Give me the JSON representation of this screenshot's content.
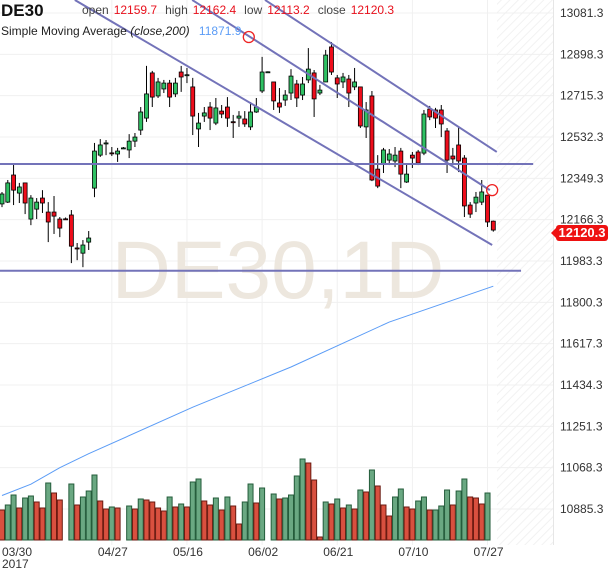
{
  "header": {
    "symbol": "DE30",
    "open_label": "open",
    "open_value": "12159.7",
    "high_label": "high",
    "high_value": "12162.4",
    "low_label": "low",
    "low_value": "12113.2",
    "close_label": "close",
    "close_value": "12120.3",
    "indicator_name": "Simple Moving Average",
    "indicator_params": "(close,200)",
    "indicator_value": "11871.9"
  },
  "last_price_tag": "12120.3",
  "colors": {
    "up": "#2fc163",
    "down": "#ee0d1b",
    "volume_up": "#6aa882",
    "volume_down": "#d9503f",
    "sma": "#5b9cf6",
    "trendline": "#7373b9",
    "marker": "#ee2222",
    "watermark": "#ede7de",
    "last_price": "#ee1111"
  },
  "chart_data": {
    "type": "candlestick",
    "title": "DE30",
    "watermark": "DE30,1D",
    "y_axis_position": "right",
    "ylim": [
      10885.3,
      13081.3
    ],
    "y_ticks": [
      "13081.3",
      "12898.3",
      "12715.3",
      "12532.3",
      "12349.3",
      "12166.3",
      "11983.3",
      "11800.3",
      "11617.3",
      "11434.3",
      "11251.3",
      "11068.3",
      "10885.3"
    ],
    "x_ticks": [
      {
        "label": "03/30",
        "sub": "2017",
        "bar": 0
      },
      {
        "label": "04/27",
        "bar": 19
      },
      {
        "label": "05/16",
        "bar": 32
      },
      {
        "label": "06/02",
        "bar": 45
      },
      {
        "label": "06/21",
        "bar": 58
      },
      {
        "label": "07/10",
        "bar": 71
      },
      {
        "label": "07/27",
        "bar": 84
      }
    ],
    "grid": true,
    "ohlc_columns": [
      "open",
      "high",
      "low",
      "close"
    ],
    "candles": [
      [
        12236,
        12289,
        12222,
        12280
      ],
      [
        12244,
        12342,
        12240,
        12329
      ],
      [
        12364,
        12413,
        12231,
        12297
      ],
      [
        12284,
        12329,
        12240,
        12311
      ],
      [
        12329,
        12329,
        12191,
        12240
      ],
      [
        12169,
        12275,
        12142,
        12262
      ],
      [
        12213,
        12262,
        12169,
        12244
      ],
      [
        12262,
        12297,
        12196,
        12240
      ],
      [
        12200,
        12244,
        12067,
        12156
      ],
      [
        12200,
        12271,
        12103,
        12182
      ],
      [
        12169,
        12178,
        12089,
        12129
      ],
      [
        12170,
        12176,
        12165,
        12168
      ],
      [
        12187,
        12209,
        11974,
        12049
      ],
      [
        12041,
        12063,
        11987,
        12039
      ],
      [
        12018,
        12076,
        11956,
        12054
      ],
      [
        12067,
        12116,
        12032,
        12085
      ],
      [
        12306,
        12506,
        12266,
        12470
      ],
      [
        12452,
        12523,
        12444,
        12497
      ],
      [
        12504,
        12519,
        12452,
        12506
      ],
      [
        12462,
        12488,
        12448,
        12461
      ],
      [
        12457,
        12484,
        12422,
        12470
      ],
      [
        12483,
        12488,
        12479,
        12484
      ],
      [
        12475,
        12545,
        12439,
        12514
      ],
      [
        12514,
        12550,
        12488,
        12532
      ],
      [
        12563,
        12665,
        12541,
        12643
      ],
      [
        12616,
        12847,
        12599,
        12723
      ],
      [
        12816,
        12825,
        12665,
        12709
      ],
      [
        12714,
        12794,
        12705,
        12776
      ],
      [
        12745,
        12785,
        12727,
        12771
      ],
      [
        12771,
        12785,
        12665,
        12709
      ],
      [
        12723,
        12794,
        12709,
        12771
      ],
      [
        12820,
        12847,
        12732,
        12798
      ],
      [
        12807,
        12838,
        12771,
        12808
      ],
      [
        12754,
        12794,
        12541,
        12625
      ],
      [
        12568,
        12639,
        12488,
        12594
      ],
      [
        12625,
        12665,
        12599,
        12639
      ],
      [
        12665,
        12687,
        12563,
        12616
      ],
      [
        12594,
        12705,
        12585,
        12661
      ],
      [
        12647,
        12674,
        12616,
        12634
      ],
      [
        12665,
        12709,
        12577,
        12616
      ],
      [
        12600,
        12630,
        12528,
        12599
      ],
      [
        12616,
        12647,
        12577,
        12625
      ],
      [
        12612,
        12647,
        12577,
        12590
      ],
      [
        12577,
        12687,
        12563,
        12643
      ],
      [
        12643,
        12705,
        12639,
        12665
      ],
      [
        12736,
        12887,
        12727,
        12820
      ],
      [
        12820,
        12823,
        12818,
        12821
      ],
      [
        12776,
        12776,
        12652,
        12692
      ],
      [
        12683,
        12749,
        12639,
        12665
      ],
      [
        12696,
        12740,
        12670,
        12718
      ],
      [
        12727,
        12833,
        12696,
        12802
      ],
      [
        12767,
        12785,
        12665,
        12705
      ],
      [
        12718,
        12798,
        12696,
        12767
      ],
      [
        12785,
        12926,
        12771,
        12833
      ],
      [
        12816,
        12829,
        12621,
        12701
      ],
      [
        12727,
        12763,
        12718,
        12740
      ],
      [
        12776,
        12918,
        12776,
        12895
      ],
      [
        12931,
        12953,
        12807,
        12820
      ],
      [
        12794,
        12807,
        12705,
        12767
      ],
      [
        12776,
        12816,
        12749,
        12798
      ],
      [
        12789,
        12807,
        12665,
        12727
      ],
      [
        12754,
        12838,
        12740,
        12776
      ],
      [
        12754,
        12754,
        12572,
        12581
      ],
      [
        12577,
        12687,
        12528,
        12652
      ],
      [
        12714,
        12736,
        12337,
        12342
      ],
      [
        12390,
        12452,
        12306,
        12315
      ],
      [
        12413,
        12484,
        12373,
        12475
      ],
      [
        12430,
        12479,
        12408,
        12457
      ],
      [
        12426,
        12488,
        12399,
        12452
      ],
      [
        12470,
        12484,
        12306,
        12368
      ],
      [
        12333,
        12417,
        12329,
        12368
      ],
      [
        12452,
        12466,
        12395,
        12439
      ],
      [
        12466,
        12475,
        12408,
        12417
      ],
      [
        12461,
        12652,
        12452,
        12634
      ],
      [
        12656,
        12670,
        12607,
        12621
      ],
      [
        12652,
        12661,
        12572,
        12616
      ],
      [
        12652,
        12674,
        12532,
        12590
      ],
      [
        12559,
        12572,
        12373,
        12430
      ],
      [
        12448,
        12484,
        12408,
        12435
      ],
      [
        12497,
        12577,
        12377,
        12426
      ],
      [
        12439,
        12452,
        12178,
        12227
      ],
      [
        12231,
        12244,
        12174,
        12191
      ],
      [
        12240,
        12289,
        12200,
        12266
      ],
      [
        12244,
        12342,
        12231,
        12289
      ],
      [
        12275,
        12275,
        12134,
        12156
      ],
      [
        12159.7,
        12162.4,
        12113.2,
        12120.3
      ]
    ],
    "volume_relative": [
      [
        30,
        "d"
      ],
      [
        35,
        "u"
      ],
      [
        45,
        "u"
      ],
      [
        32,
        "d"
      ],
      [
        42,
        "u"
      ],
      [
        44,
        "u"
      ],
      [
        38,
        "d"
      ],
      [
        32,
        "d"
      ],
      [
        57,
        "u"
      ],
      [
        47,
        "d"
      ],
      [
        40,
        "d"
      ],
      null,
      [
        56,
        "u"
      ],
      [
        35,
        "d"
      ],
      [
        43,
        "u"
      ],
      [
        49,
        "u"
      ],
      [
        65,
        "u"
      ],
      [
        39,
        "d"
      ],
      [
        31,
        "d"
      ],
      [
        33,
        "u"
      ],
      [
        32,
        "d"
      ],
      null,
      [
        34,
        "u"
      ],
      [
        31,
        "d"
      ],
      [
        41,
        "u"
      ],
      [
        40,
        "d"
      ],
      [
        38,
        "d"
      ],
      [
        32,
        "d"
      ],
      [
        29,
        "d"
      ],
      [
        43,
        "u"
      ],
      [
        33,
        "d"
      ],
      [
        36,
        "u"
      ],
      [
        33,
        "d"
      ],
      [
        58,
        "u"
      ],
      [
        61,
        "u"
      ],
      [
        39,
        "d"
      ],
      [
        35,
        "d"
      ],
      [
        42,
        "u"
      ],
      [
        30,
        "d"
      ],
      [
        43,
        "u"
      ],
      [
        34,
        "d"
      ],
      [
        16,
        "d"
      ],
      [
        38,
        "u"
      ],
      [
        56,
        "u"
      ],
      [
        37,
        "d"
      ],
      [
        52,
        "u"
      ],
      null,
      [
        46,
        "u"
      ],
      [
        41,
        "d"
      ],
      [
        42,
        "u"
      ],
      [
        45,
        "u"
      ],
      [
        64,
        "u"
      ],
      [
        81,
        "u"
      ],
      [
        77,
        "d"
      ],
      [
        60,
        "d"
      ],
      [
        3,
        "d"
      ],
      [
        38,
        "u"
      ],
      [
        36,
        "d"
      ],
      [
        41,
        "u"
      ],
      [
        32,
        "d"
      ],
      [
        35,
        "u"
      ],
      [
        31,
        "d"
      ],
      [
        50,
        "u"
      ],
      [
        48,
        "d"
      ],
      [
        70,
        "u"
      ],
      [
        54,
        "d"
      ],
      [
        35,
        "d"
      ],
      [
        24,
        "d"
      ],
      [
        43,
        "u"
      ],
      [
        51,
        "u"
      ],
      [
        33,
        "d"
      ],
      [
        31,
        "d"
      ],
      [
        39,
        "u"
      ],
      [
        43,
        "u"
      ],
      [
        30,
        "d"
      ],
      [
        30,
        "u"
      ],
      [
        34,
        "u"
      ],
      [
        50,
        "u"
      ],
      [
        35,
        "d"
      ],
      [
        49,
        "u"
      ],
      [
        61,
        "u"
      ],
      [
        43,
        "d"
      ],
      [
        42,
        "d"
      ],
      [
        36,
        "d"
      ],
      [
        47,
        "u"
      ],
      null
    ],
    "sma_200": [
      [
        0,
        10945
      ],
      [
        5,
        10995
      ],
      [
        10,
        11068
      ],
      [
        15,
        11130
      ],
      [
        33,
        11336
      ],
      [
        50,
        11514
      ],
      [
        67,
        11713
      ],
      [
        85,
        11871.9
      ]
    ],
    "drawings": {
      "trendlines": [
        {
          "from": [
            12.6,
            13139
          ],
          "to": [
            84.8,
            12054
          ]
        },
        {
          "from": [
            32.9,
            13139
          ],
          "to": [
            84.4,
            12297
          ]
        },
        {
          "from": [
            45.5,
            13139
          ],
          "to": [
            85.6,
            12466
          ]
        }
      ],
      "horizontal_lines": [
        {
          "price": 12413,
          "to_bar": 91.9
        },
        {
          "price": 11940,
          "to_bar": 89.8
        }
      ],
      "circle_markers": [
        [
          42.7,
          12975
        ],
        [
          84.8,
          12297
        ]
      ]
    }
  }
}
